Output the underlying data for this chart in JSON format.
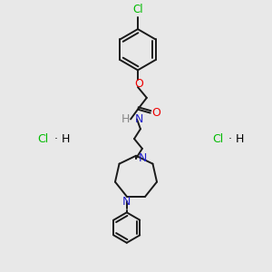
{
  "background_color": "#e8e8e8",
  "bond_color": "#1a1a1a",
  "atom_colors": {
    "Cl_top": "#00bb00",
    "O": "#ee0000",
    "N": "#2222cc",
    "H": "#888888",
    "Cl_salt": "#00bb00",
    "H_salt": "#000000"
  },
  "figsize": [
    3.0,
    3.0
  ],
  "dpi": 100
}
